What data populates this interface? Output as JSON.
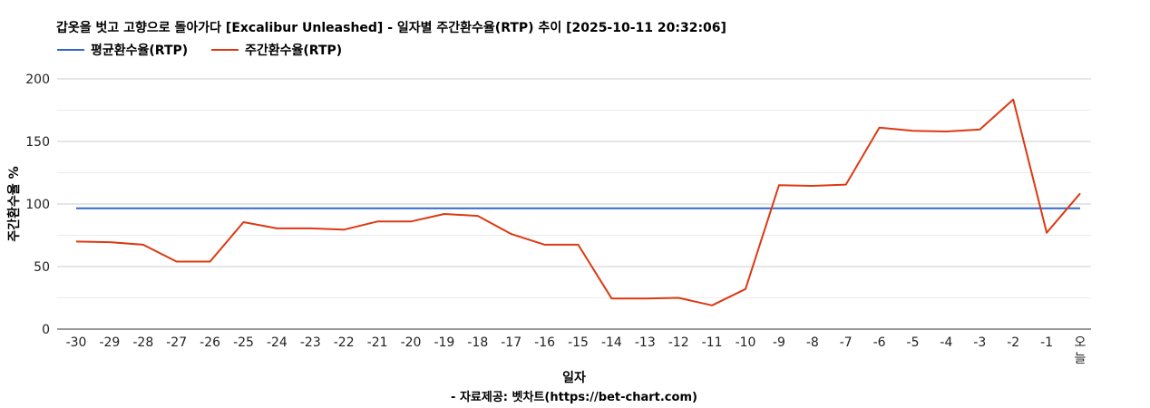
{
  "chart_data": {
    "type": "line",
    "title": "갑옷을 벗고 고향으로 돌아가다 [Excalibur Unleashed] - 일자별 주간환수율(RTP) 추이 [2025-10-11 20:32:06]",
    "xlabel": "일자",
    "ylabel": "주간환수율 %",
    "source": "- 자료제공: 벳차트(https://bet-chart.com)",
    "ylim": [
      0,
      200
    ],
    "yticks": [
      0,
      50,
      100,
      150,
      200
    ],
    "grid": true,
    "legend_position": "top-left",
    "categories": [
      "-30",
      "-29",
      "-28",
      "-27",
      "-26",
      "-25",
      "-24",
      "-23",
      "-22",
      "-21",
      "-20",
      "-19",
      "-18",
      "-17",
      "-16",
      "-15",
      "-14",
      "-13",
      "-12",
      "-11",
      "-10",
      "-9",
      "-8",
      "-7",
      "-6",
      "-5",
      "-4",
      "-3",
      "-2",
      "-1",
      "오늘"
    ],
    "series": [
      {
        "name": "평균환수율(RTP)",
        "color": "#3366cc",
        "values": [
          96.5,
          96.5,
          96.5,
          96.5,
          96.5,
          96.5,
          96.5,
          96.5,
          96.5,
          96.5,
          96.5,
          96.5,
          96.5,
          96.5,
          96.5,
          96.5,
          96.5,
          96.5,
          96.5,
          96.5,
          96.5,
          96.5,
          96.5,
          96.5,
          96.5,
          96.5,
          96.5,
          96.5,
          96.5,
          96.5,
          96.5
        ]
      },
      {
        "name": "주간환수율(RTP)",
        "color": "#dc3912",
        "values": [
          70,
          69.5,
          67.5,
          54,
          54,
          85.5,
          80.5,
          80.5,
          79.5,
          86,
          86,
          92,
          90.5,
          76,
          67.5,
          67.5,
          24.5,
          24.5,
          25,
          19,
          32,
          115,
          114.5,
          115.5,
          161,
          158.5,
          158,
          159.5,
          183.5,
          77,
          108.5
        ]
      }
    ]
  }
}
